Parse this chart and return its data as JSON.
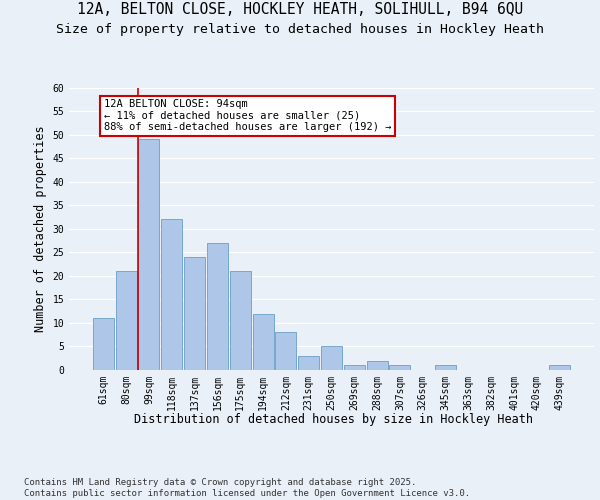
{
  "title_line1": "12A, BELTON CLOSE, HOCKLEY HEATH, SOLIHULL, B94 6QU",
  "title_line2": "Size of property relative to detached houses in Hockley Heath",
  "xlabel": "Distribution of detached houses by size in Hockley Heath",
  "ylabel": "Number of detached properties",
  "categories": [
    "61sqm",
    "80sqm",
    "99sqm",
    "118sqm",
    "137sqm",
    "156sqm",
    "175sqm",
    "194sqm",
    "212sqm",
    "231sqm",
    "250sqm",
    "269sqm",
    "288sqm",
    "307sqm",
    "326sqm",
    "345sqm",
    "363sqm",
    "382sqm",
    "401sqm",
    "420sqm",
    "439sqm"
  ],
  "values": [
    11,
    21,
    49,
    32,
    24,
    27,
    21,
    12,
    8,
    3,
    5,
    1,
    2,
    1,
    0,
    1,
    0,
    0,
    0,
    0,
    1
  ],
  "bar_color": "#aec6e8",
  "bar_edge_color": "#6a9fc8",
  "annotation_text": "12A BELTON CLOSE: 94sqm\n← 11% of detached houses are smaller (25)\n88% of semi-detached houses are larger (192) →",
  "annotation_box_color": "#ffffff",
  "annotation_box_edge_color": "#cc0000",
  "vline_color": "#cc0000",
  "ylim": [
    0,
    60
  ],
  "yticks": [
    0,
    5,
    10,
    15,
    20,
    25,
    30,
    35,
    40,
    45,
    50,
    55,
    60
  ],
  "bg_color": "#eaf0f8",
  "plot_bg_color": "#eaf0f8",
  "grid_color": "#ffffff",
  "footer": "Contains HM Land Registry data © Crown copyright and database right 2025.\nContains public sector information licensed under the Open Government Licence v3.0.",
  "title_fontsize": 10.5,
  "subtitle_fontsize": 9.5,
  "label_fontsize": 8.5,
  "tick_fontsize": 7,
  "footer_fontsize": 6.5,
  "annot_fontsize": 7.5
}
